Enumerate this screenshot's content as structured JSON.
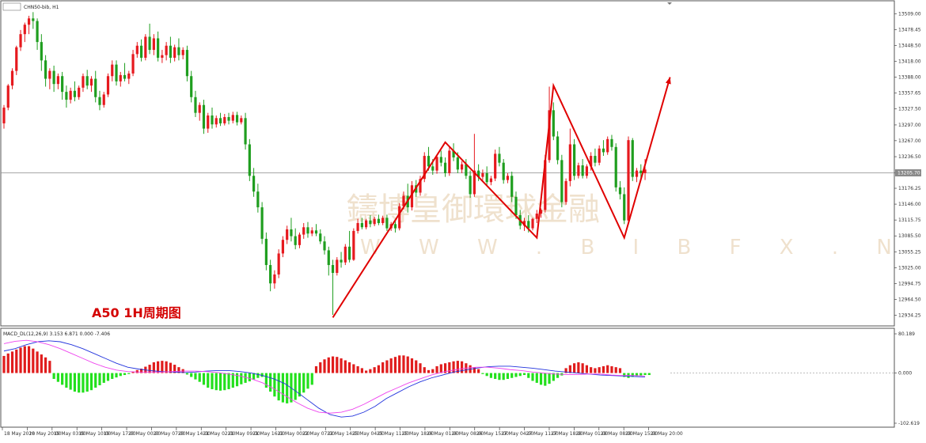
{
  "window": {
    "symbol_label": "CHN50-bib, H1",
    "macd_label": "MACD_DL(12,26,9) 3.153 6.871 0.000 -7.406"
  },
  "annotation": "A50 1H周期图",
  "watermark": {
    "cn": "鑄博皇御環球金融",
    "en": "W W W . B I B F X . N E T"
  },
  "colors": {
    "bull": "#e6191e",
    "bear": "#1f9e1f",
    "macd_pos": "#e01c1c",
    "macd_neg": "#22e01c",
    "macd_line": "#2233dd",
    "signal_line": "#ee44ee",
    "pattern": "#e00000"
  },
  "price_axis": {
    "ticks": [
      "13509.00",
      "13478.45",
      "13448.50",
      "13418.00",
      "13388.00",
      "13357.65",
      "13327.50",
      "13297.00",
      "13267.00",
      "13236.50",
      "13205.70",
      "13176.25",
      "13146.00",
      "13115.75",
      "13085.50",
      "13055.25",
      "13025.00",
      "12994.75",
      "12964.50",
      "12934.25"
    ],
    "current_price": "13205.70"
  },
  "macd_axis": {
    "ticks": [
      "80.189",
      "0.000",
      "-102.619"
    ]
  },
  "time_axis": {
    "labels": [
      "18 May 2020",
      "18 May 20:00",
      "19 May 03:00",
      "19 May 10:00",
      "19 May 17:00",
      "20 May 00:00",
      "20 May 07:00",
      "20 May 14:00",
      "21 May 02:00",
      "21 May 09:00",
      "21 May 16:00",
      "22 May 00:00",
      "22 May 07:00",
      "22 May 14:00",
      "25 May 04:00",
      "25 May 11:00",
      "25 May 18:00",
      "26 May 01:00",
      "26 May 08:00",
      "26 May 15:00",
      "27 May 04:00",
      "27 May 11:00",
      "27 May 18:00",
      "28 May 01:00",
      "28 May 08:00",
      "28 May 15:00",
      "28 May 20:00"
    ]
  },
  "chart_data": {
    "type": "candlestick",
    "symbol": "CHN50-bib",
    "timeframe": "H1",
    "ylim": [
      12920,
      13520
    ],
    "candles": [
      {
        "o": 13300,
        "h": 13335,
        "c": 13330,
        "l": 13290
      },
      {
        "o": 13330,
        "h": 13375,
        "c": 13372,
        "l": 13325
      },
      {
        "o": 13372,
        "h": 13405,
        "c": 13400,
        "l": 13365
      },
      {
        "o": 13400,
        "h": 13448,
        "c": 13445,
        "l": 13392
      },
      {
        "o": 13445,
        "h": 13478,
        "c": 13470,
        "l": 13438
      },
      {
        "o": 13470,
        "h": 13492,
        "c": 13488,
        "l": 13455
      },
      {
        "o": 13488,
        "h": 13505,
        "c": 13500,
        "l": 13470
      },
      {
        "o": 13500,
        "h": 13512,
        "c": 13495,
        "l": 13480
      },
      {
        "o": 13495,
        "h": 13500,
        "c": 13455,
        "l": 13440
      },
      {
        "o": 13455,
        "h": 13470,
        "c": 13420,
        "l": 13400
      },
      {
        "o": 13420,
        "h": 13430,
        "c": 13385,
        "l": 13370
      },
      {
        "o": 13385,
        "h": 13405,
        "c": 13400,
        "l": 13365
      },
      {
        "o": 13400,
        "h": 13410,
        "c": 13375,
        "l": 13360
      },
      {
        "o": 13375,
        "h": 13395,
        "c": 13390,
        "l": 13365
      },
      {
        "o": 13390,
        "h": 13398,
        "c": 13360,
        "l": 13345
      },
      {
        "o": 13360,
        "h": 13372,
        "c": 13345,
        "l": 13330
      },
      {
        "o": 13345,
        "h": 13368,
        "c": 13362,
        "l": 13338
      },
      {
        "o": 13362,
        "h": 13380,
        "c": 13350,
        "l": 13342
      },
      {
        "o": 13350,
        "h": 13372,
        "c": 13368,
        "l": 13345
      },
      {
        "o": 13368,
        "h": 13395,
        "c": 13390,
        "l": 13360
      },
      {
        "o": 13390,
        "h": 13402,
        "c": 13372,
        "l": 13365
      },
      {
        "o": 13372,
        "h": 13390,
        "c": 13385,
        "l": 13360
      },
      {
        "o": 13385,
        "h": 13400,
        "c": 13350,
        "l": 13340
      },
      {
        "o": 13350,
        "h": 13362,
        "c": 13335,
        "l": 13325
      },
      {
        "o": 13335,
        "h": 13360,
        "c": 13355,
        "l": 13330
      },
      {
        "o": 13355,
        "h": 13395,
        "c": 13390,
        "l": 13350
      },
      {
        "o": 13390,
        "h": 13420,
        "c": 13412,
        "l": 13380
      },
      {
        "o": 13412,
        "h": 13420,
        "c": 13380,
        "l": 13372
      },
      {
        "o": 13380,
        "h": 13398,
        "c": 13392,
        "l": 13370
      },
      {
        "o": 13392,
        "h": 13415,
        "c": 13385,
        "l": 13380
      },
      {
        "o": 13385,
        "h": 13400,
        "c": 13395,
        "l": 13375
      },
      {
        "o": 13395,
        "h": 13440,
        "c": 13432,
        "l": 13390
      },
      {
        "o": 13432,
        "h": 13455,
        "c": 13448,
        "l": 13425
      },
      {
        "o": 13448,
        "h": 13460,
        "c": 13425,
        "l": 13418
      },
      {
        "o": 13425,
        "h": 13470,
        "c": 13465,
        "l": 13420
      },
      {
        "o": 13465,
        "h": 13490,
        "c": 13440,
        "l": 13432
      },
      {
        "o": 13440,
        "h": 13470,
        "c": 13462,
        "l": 13430
      },
      {
        "o": 13462,
        "h": 13475,
        "c": 13425,
        "l": 13418
      },
      {
        "o": 13425,
        "h": 13440,
        "c": 13430,
        "l": 13415
      },
      {
        "o": 13430,
        "h": 13455,
        "c": 13448,
        "l": 13420
      },
      {
        "o": 13448,
        "h": 13465,
        "c": 13425,
        "l": 13415
      },
      {
        "o": 13425,
        "h": 13450,
        "c": 13445,
        "l": 13418
      },
      {
        "o": 13445,
        "h": 13462,
        "c": 13430,
        "l": 13420
      },
      {
        "o": 13430,
        "h": 13445,
        "c": 13440,
        "l": 13422
      },
      {
        "o": 13440,
        "h": 13448,
        "c": 13390,
        "l": 13380
      },
      {
        "o": 13390,
        "h": 13400,
        "c": 13350,
        "l": 13340
      },
      {
        "o": 13350,
        "h": 13362,
        "c": 13320,
        "l": 13312
      },
      {
        "o": 13320,
        "h": 13340,
        "c": 13335,
        "l": 13305
      },
      {
        "o": 13335,
        "h": 13345,
        "c": 13290,
        "l": 13280
      },
      {
        "o": 13290,
        "h": 13320,
        "c": 13315,
        "l": 13282
      },
      {
        "o": 13315,
        "h": 13330,
        "c": 13298,
        "l": 13290
      },
      {
        "o": 13298,
        "h": 13315,
        "c": 13310,
        "l": 13292
      },
      {
        "o": 13310,
        "h": 13320,
        "c": 13300,
        "l": 13295
      },
      {
        "o": 13300,
        "h": 13318,
        "c": 13312,
        "l": 13296
      },
      {
        "o": 13312,
        "h": 13320,
        "c": 13305,
        "l": 13298
      },
      {
        "o": 13305,
        "h": 13322,
        "c": 13316,
        "l": 13300
      },
      {
        "o": 13316,
        "h": 13322,
        "c": 13302,
        "l": 13296
      },
      {
        "o": 13302,
        "h": 13315,
        "c": 13310,
        "l": 13298
      },
      {
        "o": 13310,
        "h": 13320,
        "c": 13260,
        "l": 13250
      },
      {
        "o": 13260,
        "h": 13270,
        "c": 13200,
        "l": 13190
      },
      {
        "o": 13200,
        "h": 13215,
        "c": 13170,
        "l": 13160
      },
      {
        "o": 13170,
        "h": 13185,
        "c": 13140,
        "l": 13130
      },
      {
        "o": 13140,
        "h": 13150,
        "c": 13080,
        "l": 13070
      },
      {
        "o": 13080,
        "h": 13092,
        "c": 13030,
        "l": 13020
      },
      {
        "o": 13030,
        "h": 13040,
        "c": 12995,
        "l": 12980
      },
      {
        "o": 12995,
        "h": 13020,
        "c": 13012,
        "l": 12985
      },
      {
        "o": 13012,
        "h": 13060,
        "c": 13052,
        "l": 13005
      },
      {
        "o": 13052,
        "h": 13085,
        "c": 13078,
        "l": 13045
      },
      {
        "o": 13078,
        "h": 13105,
        "c": 13098,
        "l": 13070
      },
      {
        "o": 13098,
        "h": 13120,
        "c": 13085,
        "l": 13075
      },
      {
        "o": 13085,
        "h": 13100,
        "c": 13068,
        "l": 13060
      },
      {
        "o": 13068,
        "h": 13092,
        "c": 13088,
        "l": 13062
      },
      {
        "o": 13088,
        "h": 13110,
        "c": 13102,
        "l": 13080
      },
      {
        "o": 13102,
        "h": 13112,
        "c": 13090,
        "l": 13082
      },
      {
        "o": 13090,
        "h": 13102,
        "c": 13096,
        "l": 13085
      },
      {
        "o": 13096,
        "h": 13108,
        "c": 13090,
        "l": 13085
      },
      {
        "o": 13090,
        "h": 13098,
        "c": 13075,
        "l": 13070
      },
      {
        "o": 13075,
        "h": 13085,
        "c": 13058,
        "l": 13050
      },
      {
        "o": 13058,
        "h": 13065,
        "c": 13030,
        "l": 13010
      },
      {
        "o": 13030,
        "h": 13040,
        "c": 13015,
        "l": 12935
      },
      {
        "o": 13015,
        "h": 13045,
        "c": 13040,
        "l": 13010
      },
      {
        "o": 13040,
        "h": 13055,
        "c": 13035,
        "l": 13025
      },
      {
        "o": 13035,
        "h": 13070,
        "c": 13065,
        "l": 13030
      },
      {
        "o": 13065,
        "h": 13095,
        "c": 13040,
        "l": 13035
      },
      {
        "o": 13040,
        "h": 13100,
        "c": 13095,
        "l": 13038
      },
      {
        "o": 13095,
        "h": 13118,
        "c": 13110,
        "l": 13090
      },
      {
        "o": 13110,
        "h": 13120,
        "c": 13102,
        "l": 13098
      },
      {
        "o": 13102,
        "h": 13118,
        "c": 13115,
        "l": 13098
      },
      {
        "o": 13115,
        "h": 13125,
        "c": 13108,
        "l": 13102
      },
      {
        "o": 13108,
        "h": 13122,
        "c": 13118,
        "l": 13104
      },
      {
        "o": 13118,
        "h": 13126,
        "c": 13110,
        "l": 13106
      },
      {
        "o": 13110,
        "h": 13124,
        "c": 13120,
        "l": 13106
      },
      {
        "o": 13120,
        "h": 13126,
        "c": 13100,
        "l": 13095
      },
      {
        "o": 13100,
        "h": 13112,
        "c": 13108,
        "l": 13095
      },
      {
        "o": 13108,
        "h": 13118,
        "c": 13100,
        "l": 13092
      },
      {
        "o": 13100,
        "h": 13148,
        "c": 13142,
        "l": 13096
      },
      {
        "o": 13142,
        "h": 13170,
        "c": 13162,
        "l": 13136
      },
      {
        "o": 13162,
        "h": 13185,
        "c": 13140,
        "l": 13130
      },
      {
        "o": 13140,
        "h": 13190,
        "c": 13182,
        "l": 13134
      },
      {
        "o": 13182,
        "h": 13192,
        "c": 13168,
        "l": 13160
      },
      {
        "o": 13168,
        "h": 13200,
        "c": 13194,
        "l": 13162
      },
      {
        "o": 13194,
        "h": 13245,
        "c": 13238,
        "l": 13188
      },
      {
        "o": 13238,
        "h": 13255,
        "c": 13218,
        "l": 13210
      },
      {
        "o": 13218,
        "h": 13232,
        "c": 13210,
        "l": 13202
      },
      {
        "o": 13210,
        "h": 13240,
        "c": 13236,
        "l": 13204
      },
      {
        "o": 13236,
        "h": 13248,
        "c": 13225,
        "l": 13218
      },
      {
        "o": 13225,
        "h": 13235,
        "c": 13205,
        "l": 13198
      },
      {
        "o": 13205,
        "h": 13255,
        "c": 13248,
        "l": 13200
      },
      {
        "o": 13248,
        "h": 13262,
        "c": 13235,
        "l": 13228
      },
      {
        "o": 13235,
        "h": 13245,
        "c": 13212,
        "l": 13205
      },
      {
        "o": 13212,
        "h": 13228,
        "c": 13222,
        "l": 13205
      },
      {
        "o": 13222,
        "h": 13232,
        "c": 13200,
        "l": 13194
      },
      {
        "o": 13200,
        "h": 13210,
        "c": 13165,
        "l": 13158
      },
      {
        "o": 13165,
        "h": 13280,
        "c": 13210,
        "l": 13160
      },
      {
        "o": 13210,
        "h": 13222,
        "c": 13198,
        "l": 13190
      },
      {
        "o": 13198,
        "h": 13212,
        "c": 13205,
        "l": 13192
      },
      {
        "o": 13205,
        "h": 13218,
        "c": 13188,
        "l": 13180
      },
      {
        "o": 13188,
        "h": 13200,
        "c": 13195,
        "l": 13182
      },
      {
        "o": 13195,
        "h": 13250,
        "c": 13242,
        "l": 13190
      },
      {
        "o": 13242,
        "h": 13255,
        "c": 13225,
        "l": 13218
      },
      {
        "o": 13225,
        "h": 13232,
        "c": 13192,
        "l": 13185
      },
      {
        "o": 13192,
        "h": 13205,
        "c": 13200,
        "l": 13186
      },
      {
        "o": 13200,
        "h": 13208,
        "c": 13160,
        "l": 13150
      },
      {
        "o": 13160,
        "h": 13170,
        "c": 13125,
        "l": 13118
      },
      {
        "o": 13125,
        "h": 13135,
        "c": 13105,
        "l": 13098
      },
      {
        "o": 13105,
        "h": 13120,
        "c": 13114,
        "l": 13095
      },
      {
        "o": 13114,
        "h": 13125,
        "c": 13100,
        "l": 13092
      },
      {
        "o": 13100,
        "h": 13120,
        "c": 13118,
        "l": 13096
      },
      {
        "o": 13118,
        "h": 13135,
        "c": 13128,
        "l": 13110
      },
      {
        "o": 13128,
        "h": 13138,
        "c": 13135,
        "l": 13120
      },
      {
        "o": 13135,
        "h": 13240,
        "c": 13230,
        "l": 13130
      },
      {
        "o": 13230,
        "h": 13370,
        "c": 13325,
        "l": 13225
      },
      {
        "o": 13325,
        "h": 13340,
        "c": 13275,
        "l": 13268
      },
      {
        "o": 13275,
        "h": 13285,
        "c": 13230,
        "l": 13222
      },
      {
        "o": 13230,
        "h": 13240,
        "c": 13150,
        "l": 13140
      },
      {
        "o": 13150,
        "h": 13195,
        "c": 13190,
        "l": 13145
      },
      {
        "o": 13190,
        "h": 13290,
        "c": 13260,
        "l": 13180
      },
      {
        "o": 13260,
        "h": 13270,
        "c": 13200,
        "l": 13192
      },
      {
        "o": 13200,
        "h": 13225,
        "c": 13220,
        "l": 13195
      },
      {
        "o": 13220,
        "h": 13232,
        "c": 13200,
        "l": 13195
      },
      {
        "o": 13200,
        "h": 13222,
        "c": 13218,
        "l": 13195
      },
      {
        "o": 13218,
        "h": 13245,
        "c": 13238,
        "l": 13210
      },
      {
        "o": 13238,
        "h": 13252,
        "c": 13225,
        "l": 13218
      },
      {
        "o": 13225,
        "h": 13258,
        "c": 13252,
        "l": 13220
      },
      {
        "o": 13252,
        "h": 13268,
        "c": 13245,
        "l": 13238
      },
      {
        "o": 13245,
        "h": 13275,
        "c": 13270,
        "l": 13240
      },
      {
        "o": 13270,
        "h": 13278,
        "c": 13255,
        "l": 13248
      },
      {
        "o": 13255,
        "h": 13262,
        "c": 13178,
        "l": 13170
      },
      {
        "o": 13178,
        "h": 13190,
        "c": 13165,
        "l": 13155
      },
      {
        "o": 13165,
        "h": 13178,
        "c": 13115,
        "l": 13108
      },
      {
        "o": 13115,
        "h": 13275,
        "c": 13268,
        "l": 13110
      },
      {
        "o": 13268,
        "h": 13272,
        "c": 13198,
        "l": 13190
      },
      {
        "o": 13198,
        "h": 13215,
        "c": 13210,
        "l": 13188
      },
      {
        "o": 13210,
        "h": 13222,
        "c": 13205,
        "l": 13195
      },
      {
        "o": 13205,
        "h": 13232,
        "c": 13212,
        "l": 13192
      }
    ],
    "macd_ylim": [
      -102.619,
      80.189
    ],
    "macd_histogram": [
      35,
      40,
      44,
      48,
      52,
      55,
      55,
      50,
      44,
      38,
      32,
      25,
      -12,
      -18,
      -24,
      -30,
      -34,
      -38,
      -40,
      -40,
      -38,
      -35,
      -30,
      -25,
      -20,
      -16,
      -12,
      -9,
      -6,
      -4,
      -2,
      3,
      6,
      9,
      13,
      17,
      22,
      24,
      25,
      24,
      21,
      17,
      12,
      8,
      -3,
      -8,
      -13,
      -18,
      -24,
      -30,
      -33,
      -35,
      -36,
      -35,
      -33,
      -30,
      -27,
      -23,
      -20,
      -17,
      -13,
      -10,
      -8,
      -30,
      -38,
      -48,
      -56,
      -60,
      -62,
      -60,
      -55,
      -48,
      -40,
      -32,
      -24,
      14,
      22,
      28,
      32,
      34,
      33,
      30,
      26,
      22,
      18,
      14,
      10,
      5,
      8,
      12,
      16,
      22,
      26,
      30,
      33,
      36,
      36,
      34,
      30,
      26,
      20,
      12,
      6,
      8,
      14,
      18,
      20,
      22,
      24,
      25,
      24,
      20,
      16,
      12,
      8,
      -2,
      -6,
      -10,
      -12,
      -14,
      -14,
      -12,
      -10,
      -8,
      -6,
      -4,
      -10,
      -16,
      -20,
      -24,
      -26,
      -22,
      -16,
      -10,
      -5,
      10,
      16,
      20,
      22,
      20,
      16,
      12,
      10,
      12,
      14,
      16,
      14,
      12,
      10,
      -8,
      -10,
      -8,
      -6,
      -5,
      -4,
      -4
    ],
    "macd_line": [
      45,
      50,
      58,
      64,
      66,
      64,
      58,
      50,
      40,
      30,
      20,
      12,
      8,
      5,
      3,
      2,
      1,
      2,
      4,
      5,
      5,
      3,
      0,
      -5,
      -12,
      -22,
      -38,
      -55,
      -72,
      -85,
      -90,
      -88,
      -80,
      -68,
      -52,
      -40,
      -28,
      -18,
      -10,
      -4,
      2,
      6,
      10,
      13,
      14,
      14,
      12,
      10,
      7,
      4,
      2,
      0,
      -2,
      -4,
      -5,
      -6,
      -7,
      -8
    ],
    "signal_line": [
      60,
      65,
      67,
      64,
      58,
      50,
      40,
      30,
      20,
      12,
      6,
      3,
      2,
      2,
      2,
      3,
      4,
      4,
      3,
      1,
      -2,
      -6,
      -12,
      -20,
      -32,
      -46,
      -60,
      -72,
      -80,
      -82,
      -80,
      -74,
      -64,
      -52,
      -40,
      -30,
      -20,
      -12,
      -4,
      2,
      6,
      10,
      12,
      12,
      10,
      7,
      5,
      2,
      0,
      -2,
      -3,
      -3,
      -2,
      -2,
      -4,
      -5,
      -5,
      -6
    ],
    "pattern_line": [
      {
        "i": 79,
        "p": 12930
      },
      {
        "i": 106,
        "p": 13264
      },
      {
        "i": 128,
        "p": 13082
      },
      {
        "i": 132,
        "p": 13372
      },
      {
        "i": 149,
        "p": 13082
      },
      {
        "i": 160,
        "p": 13388
      }
    ]
  }
}
